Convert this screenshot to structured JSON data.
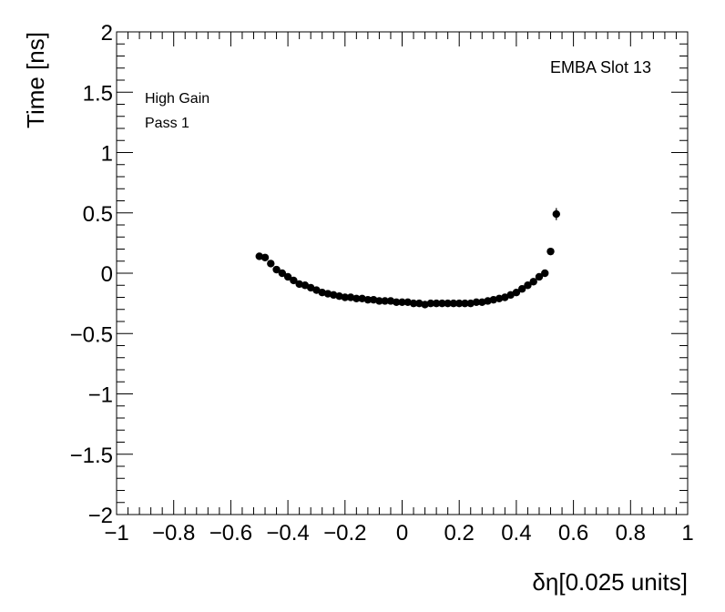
{
  "chart_data": {
    "type": "scatter",
    "title": "",
    "xlabel": "δη[0.025 units]",
    "ylabel": "Time [ns]",
    "xlim": [
      -1,
      1
    ],
    "ylim": [
      -2,
      2
    ],
    "grid": false,
    "x_ticks": [
      -1,
      -0.8,
      -0.6,
      -0.4,
      -0.2,
      0,
      0.2,
      0.4,
      0.6,
      0.8,
      1
    ],
    "x_tick_labels": [
      "−1",
      "−0.8",
      "−0.6",
      "−0.4",
      "−0.2",
      "0",
      "0.2",
      "0.4",
      "0.6",
      "0.8",
      "1"
    ],
    "y_ticks": [
      -2,
      -1.5,
      -1,
      -0.5,
      0,
      0.5,
      1,
      1.5,
      2
    ],
    "y_tick_labels": [
      "−2",
      "−1.5",
      "−1",
      "−0.5",
      "0",
      "0.5",
      "1",
      "1.5",
      "2"
    ],
    "annotations": {
      "top_right": "EMBA Slot 13",
      "line1": "High Gain",
      "line2": "Pass 1"
    },
    "points": [
      {
        "x": -0.5,
        "y": 0.14
      },
      {
        "x": -0.48,
        "y": 0.13
      },
      {
        "x": -0.46,
        "y": 0.08
      },
      {
        "x": -0.44,
        "y": 0.03
      },
      {
        "x": -0.42,
        "y": 0.0
      },
      {
        "x": -0.4,
        "y": -0.03
      },
      {
        "x": -0.38,
        "y": -0.06
      },
      {
        "x": -0.36,
        "y": -0.09
      },
      {
        "x": -0.34,
        "y": -0.1
      },
      {
        "x": -0.32,
        "y": -0.12
      },
      {
        "x": -0.3,
        "y": -0.14
      },
      {
        "x": -0.28,
        "y": -0.16
      },
      {
        "x": -0.26,
        "y": -0.17
      },
      {
        "x": -0.24,
        "y": -0.18
      },
      {
        "x": -0.22,
        "y": -0.19
      },
      {
        "x": -0.2,
        "y": -0.2
      },
      {
        "x": -0.18,
        "y": -0.2
      },
      {
        "x": -0.16,
        "y": -0.21
      },
      {
        "x": -0.14,
        "y": -0.21
      },
      {
        "x": -0.12,
        "y": -0.22
      },
      {
        "x": -0.1,
        "y": -0.22
      },
      {
        "x": -0.08,
        "y": -0.23
      },
      {
        "x": -0.06,
        "y": -0.23
      },
      {
        "x": -0.04,
        "y": -0.23
      },
      {
        "x": -0.02,
        "y": -0.24
      },
      {
        "x": 0.0,
        "y": -0.24
      },
      {
        "x": 0.02,
        "y": -0.24
      },
      {
        "x": 0.04,
        "y": -0.25
      },
      {
        "x": 0.06,
        "y": -0.25
      },
      {
        "x": 0.08,
        "y": -0.26
      },
      {
        "x": 0.1,
        "y": -0.25
      },
      {
        "x": 0.12,
        "y": -0.25
      },
      {
        "x": 0.14,
        "y": -0.25
      },
      {
        "x": 0.16,
        "y": -0.25
      },
      {
        "x": 0.18,
        "y": -0.25
      },
      {
        "x": 0.2,
        "y": -0.25
      },
      {
        "x": 0.22,
        "y": -0.25
      },
      {
        "x": 0.24,
        "y": -0.25
      },
      {
        "x": 0.26,
        "y": -0.24
      },
      {
        "x": 0.28,
        "y": -0.24
      },
      {
        "x": 0.3,
        "y": -0.23
      },
      {
        "x": 0.32,
        "y": -0.22
      },
      {
        "x": 0.34,
        "y": -0.21
      },
      {
        "x": 0.36,
        "y": -0.2
      },
      {
        "x": 0.38,
        "y": -0.18
      },
      {
        "x": 0.4,
        "y": -0.16
      },
      {
        "x": 0.42,
        "y": -0.13
      },
      {
        "x": 0.44,
        "y": -0.1
      },
      {
        "x": 0.46,
        "y": -0.07
      },
      {
        "x": 0.48,
        "y": -0.03
      },
      {
        "x": 0.5,
        "y": 0.0
      },
      {
        "x": 0.52,
        "y": 0.18
      },
      {
        "x": 0.54,
        "y": 0.49,
        "err": 0.05
      }
    ]
  }
}
